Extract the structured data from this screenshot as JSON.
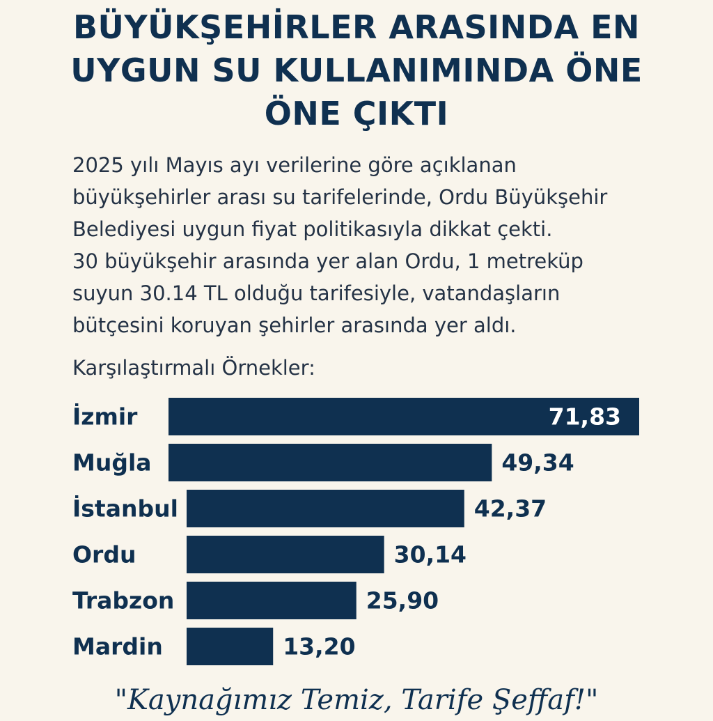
{
  "headline": {
    "line1": "BÜYÜKŞEHİRLER ARASINDA EN",
    "line2": "UYGUN SU KULLANIMINDA ÖNE",
    "line3": "ÖNE ÇIKTI"
  },
  "lead": {
    "lines": [
      "2025 yılı Mayıs ayı verilerine göre açıklanan",
      "büyükşehirler arası su tarifelerinde, Ordu Büyükşehir",
      "Belediyesi uygun fiyat politikasıyla dikkat çekti.",
      "30 büyükşehir arasında yer alan Ordu, 1 metreküp",
      "suyun 30.14 TL olduğu tarifesiyle, vatandaşların",
      "bütçesini koruyan şehirler arasında yer aldı."
    ]
  },
  "chart_data": {
    "type": "bar",
    "orientation": "horizontal",
    "title": "Karşılaştırmalı Örnekler:",
    "categories": [
      "İzmir",
      "Muğla",
      "İstanbul",
      "Ordu",
      "Trabzon",
      "Mardin"
    ],
    "values": [
      71.83,
      49.34,
      42.37,
      30.14,
      25.9,
      13.2
    ],
    "value_labels": [
      "71,83",
      "49,34",
      "42,37",
      "30,14",
      "25,90",
      "13,20"
    ],
    "bar_color": "#0f3050",
    "grid": false
  },
  "footer": {
    "motto": "\"Kaynağımız Temiz, Tarife Şeffaf!\""
  },
  "colors": {
    "background": "#f9f5ec",
    "primary": "#0f3050",
    "text": "#243245"
  }
}
